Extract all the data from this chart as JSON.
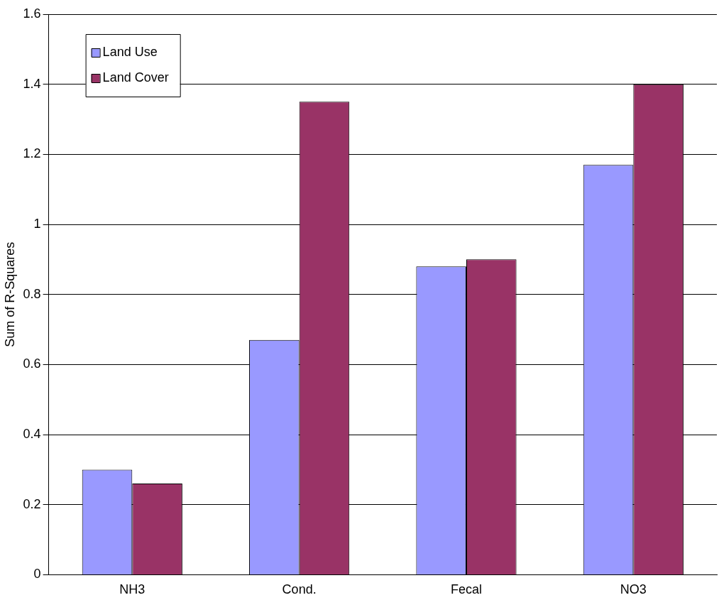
{
  "chart_data": {
    "type": "bar",
    "ylabel": "Sum of R-Squares",
    "categories": [
      "NH3",
      "Cond.",
      "Fecal",
      "NO3"
    ],
    "series": [
      {
        "name": "Land Use",
        "color": "#9999ff",
        "values": [
          0.3,
          0.67,
          0.88,
          1.17
        ]
      },
      {
        "name": "Land Cover",
        "color": "#993366",
        "values": [
          0.26,
          1.35,
          0.9,
          1.4
        ]
      }
    ],
    "ylim": [
      0,
      1.6
    ],
    "yticks": [
      0,
      0.2,
      0.4,
      0.6,
      0.8,
      1,
      1.2,
      1.4,
      1.6
    ],
    "grid": "y",
    "legend": "top left"
  }
}
